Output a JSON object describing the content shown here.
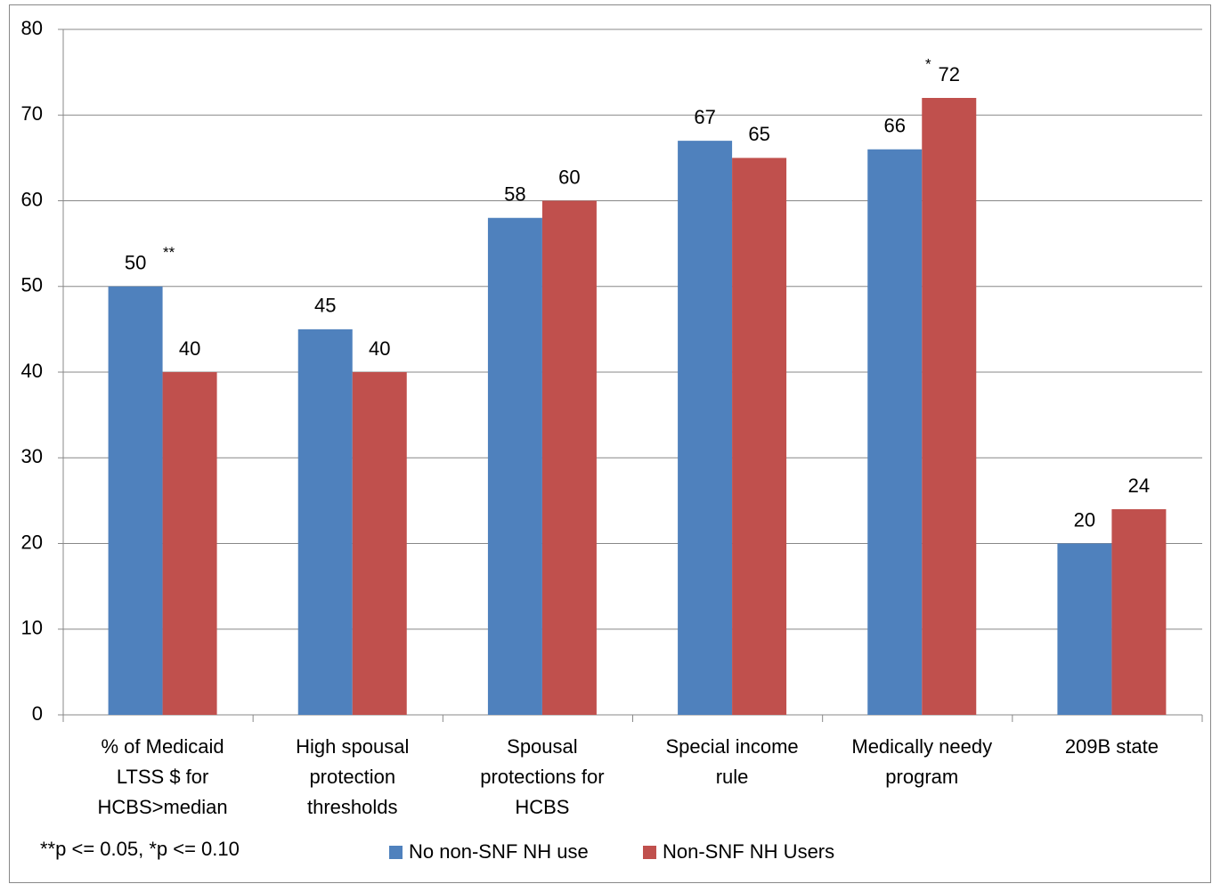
{
  "chart_data": {
    "type": "bar",
    "categories": [
      "% of Medicaid\nLTSS $ for\nHCBS>median",
      "High spousal\nprotection\nthresholds",
      "Spousal\nprotections for\nHCBS",
      "Special income\nrule",
      "Medically needy\nprogram",
      "209B state"
    ],
    "series": [
      {
        "name": "No non-SNF NH use",
        "color": "#4f81bd",
        "values": [
          50,
          45,
          58,
          67,
          66,
          20
        ]
      },
      {
        "name": "Non-SNF NH Users",
        "color": "#c0504d",
        "values": [
          40,
          40,
          60,
          65,
          72,
          24
        ]
      }
    ],
    "significance": [
      "**",
      null,
      null,
      null,
      "*",
      null
    ],
    "footnote": "**p <= 0.05, *p <= 0.10",
    "ylim": [
      0,
      80
    ],
    "yticks": [
      0,
      10,
      20,
      30,
      40,
      50,
      60,
      70,
      80
    ],
    "grid": true,
    "legend": "bottom"
  }
}
